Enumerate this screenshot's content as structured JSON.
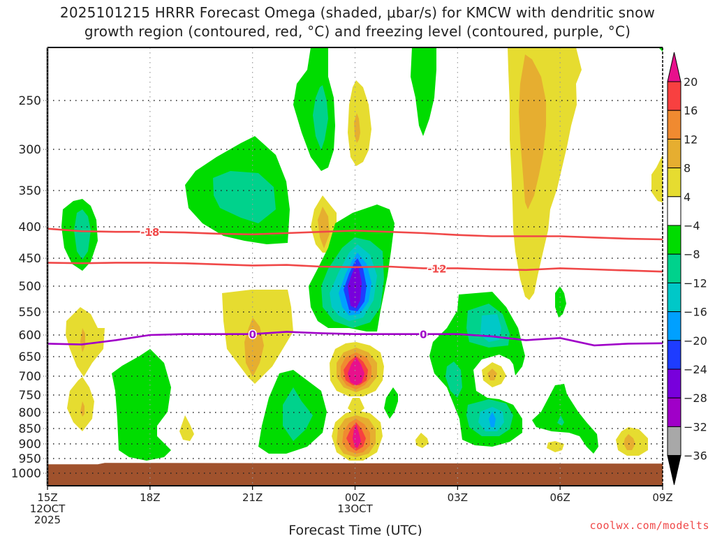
{
  "chart_data": {
    "type": "heatmap",
    "title": "2025101215 HRRR Forecast Omega (shaded, μbar/s) for KMCW with dendritic snow growth region (contoured, red, °C) and freezing level (contoured, purple, °C)",
    "title_lines": [
      "2025101215 HRRR Forecast Omega (shaded, μbar/s) for KMCW with dendritic snow",
      "growth region (contoured, red, °C) and freezing level (contoured, purple, °C)"
    ],
    "xlabel": "Forecast Time (UTC)",
    "ylabel": "",
    "x_range_hours": [
      0,
      18
    ],
    "x_ticks": [
      {
        "hour": 0,
        "label": "15Z",
        "sub1": "12OCT",
        "sub2": "2025"
      },
      {
        "hour": 3,
        "label": "18Z",
        "sub1": "",
        "sub2": ""
      },
      {
        "hour": 6,
        "label": "21Z",
        "sub1": "",
        "sub2": ""
      },
      {
        "hour": 9,
        "label": "00Z",
        "sub1": "13OCT",
        "sub2": ""
      },
      {
        "hour": 12,
        "label": "03Z",
        "sub1": "",
        "sub2": ""
      },
      {
        "hour": 15,
        "label": "06Z",
        "sub1": "",
        "sub2": ""
      },
      {
        "hour": 18,
        "label": "09Z",
        "sub1": "",
        "sub2": ""
      }
    ],
    "y_range_hpa": [
      1025,
      200
    ],
    "y_ticks": [
      250,
      300,
      350,
      400,
      450,
      500,
      550,
      600,
      650,
      700,
      750,
      800,
      850,
      900,
      950,
      1000
    ],
    "grid": "dotted",
    "colorbar": {
      "placement": "right",
      "levels": [
        20,
        16,
        12,
        8,
        4,
        -4,
        -8,
        -12,
        -16,
        -20,
        -24,
        -28,
        -32,
        -36
      ],
      "bins": [
        {
          "range": ">20",
          "color": "#e8108c"
        },
        {
          "range": "16 to 20",
          "color": "#f84040"
        },
        {
          "range": "12 to 16",
          "color": "#f08a30"
        },
        {
          "range": "8 to 12",
          "color": "#e6ae30"
        },
        {
          "range": "4 to 8",
          "color": "#e6dc30"
        },
        {
          "range": "-4 to 4",
          "color": "#ffffff"
        },
        {
          "range": "-8 to -4",
          "color": "#00dc00"
        },
        {
          "range": "-12 to -8",
          "color": "#00d28c"
        },
        {
          "range": "-16 to -12",
          "color": "#00c8c8"
        },
        {
          "range": "-20 to -16",
          "color": "#00a0ff"
        },
        {
          "range": "-24 to -20",
          "color": "#1e3cff"
        },
        {
          "range": "-28 to -24",
          "color": "#7800dc"
        },
        {
          "range": "-32 to -28",
          "color": "#a000c8"
        },
        {
          "range": "-36 to -32",
          "color": "#a8a8a8"
        },
        {
          "range": "<-36",
          "color": "#000000"
        }
      ]
    },
    "ground_color": "#a0522d",
    "ground_top_hpa": 965,
    "contours": [
      {
        "name": "-18C isotherm",
        "color": "#f04848",
        "label": "-18",
        "label_hour": 3.0,
        "points": [
          [
            0,
            403
          ],
          [
            1,
            407
          ],
          [
            2,
            408
          ],
          [
            3,
            408
          ],
          [
            4,
            409
          ],
          [
            5,
            411
          ],
          [
            6,
            412
          ],
          [
            7,
            410
          ],
          [
            8,
            408
          ],
          [
            9,
            406
          ],
          [
            10,
            408
          ],
          [
            11,
            410
          ],
          [
            12,
            413
          ],
          [
            13,
            415
          ],
          [
            14,
            415
          ],
          [
            15,
            415
          ],
          [
            16,
            417
          ],
          [
            17,
            419
          ],
          [
            18,
            420
          ]
        ]
      },
      {
        "name": "-12C isotherm",
        "color": "#f04848",
        "label": "-12",
        "label_hour": 11.4,
        "points": [
          [
            0,
            458
          ],
          [
            1,
            459
          ],
          [
            2,
            458
          ],
          [
            3,
            458
          ],
          [
            4,
            459
          ],
          [
            5,
            461
          ],
          [
            6,
            463
          ],
          [
            7,
            462
          ],
          [
            8,
            465
          ],
          [
            9,
            466
          ],
          [
            10,
            465
          ],
          [
            11,
            468
          ],
          [
            12,
            468
          ],
          [
            13,
            470
          ],
          [
            14,
            471
          ],
          [
            15,
            468
          ],
          [
            16,
            470
          ],
          [
            17,
            472
          ],
          [
            18,
            474
          ]
        ]
      },
      {
        "name": "0C freezing level",
        "color": "#a000c8",
        "label": "0",
        "label_hour": 6.0,
        "labels": [
          6.0,
          11.0
        ],
        "points": [
          [
            0,
            620
          ],
          [
            1,
            622
          ],
          [
            2,
            612
          ],
          [
            3,
            600
          ],
          [
            4,
            598
          ],
          [
            5,
            598
          ],
          [
            6,
            598
          ],
          [
            7,
            593
          ],
          [
            8,
            596
          ],
          [
            9,
            598
          ],
          [
            10,
            598
          ],
          [
            11,
            598
          ],
          [
            12,
            598
          ],
          [
            13,
            603
          ],
          [
            14,
            612
          ],
          [
            15,
            607
          ],
          [
            16,
            624
          ],
          [
            17,
            620
          ],
          [
            18,
            619
          ]
        ]
      }
    ],
    "omega_features": [
      {
        "desc": "green updraft column near 00Z aloft",
        "value_range": "-8 to -4",
        "center": [
          8.7,
          270
        ],
        "core": "-12 to -8"
      },
      {
        "desc": "strong updraft core 00Z mid-levels",
        "center": [
          9.0,
          490
        ],
        "min_bin": "-28 to -24"
      },
      {
        "desc": "strong subsidence 00Z 700 hPa",
        "center": [
          9.0,
          690
        ],
        "max_bin": ">20"
      },
      {
        "desc": "strong subsidence 00Z 870 hPa",
        "center": [
          9.0,
          865
        ],
        "max_bin": ">20"
      },
      {
        "desc": "subsidence plume 05Z upper levels",
        "center": [
          14.0,
          300
        ],
        "max_bin": "8 to 12"
      }
    ]
  },
  "credit": "coolwx.com/modelts"
}
